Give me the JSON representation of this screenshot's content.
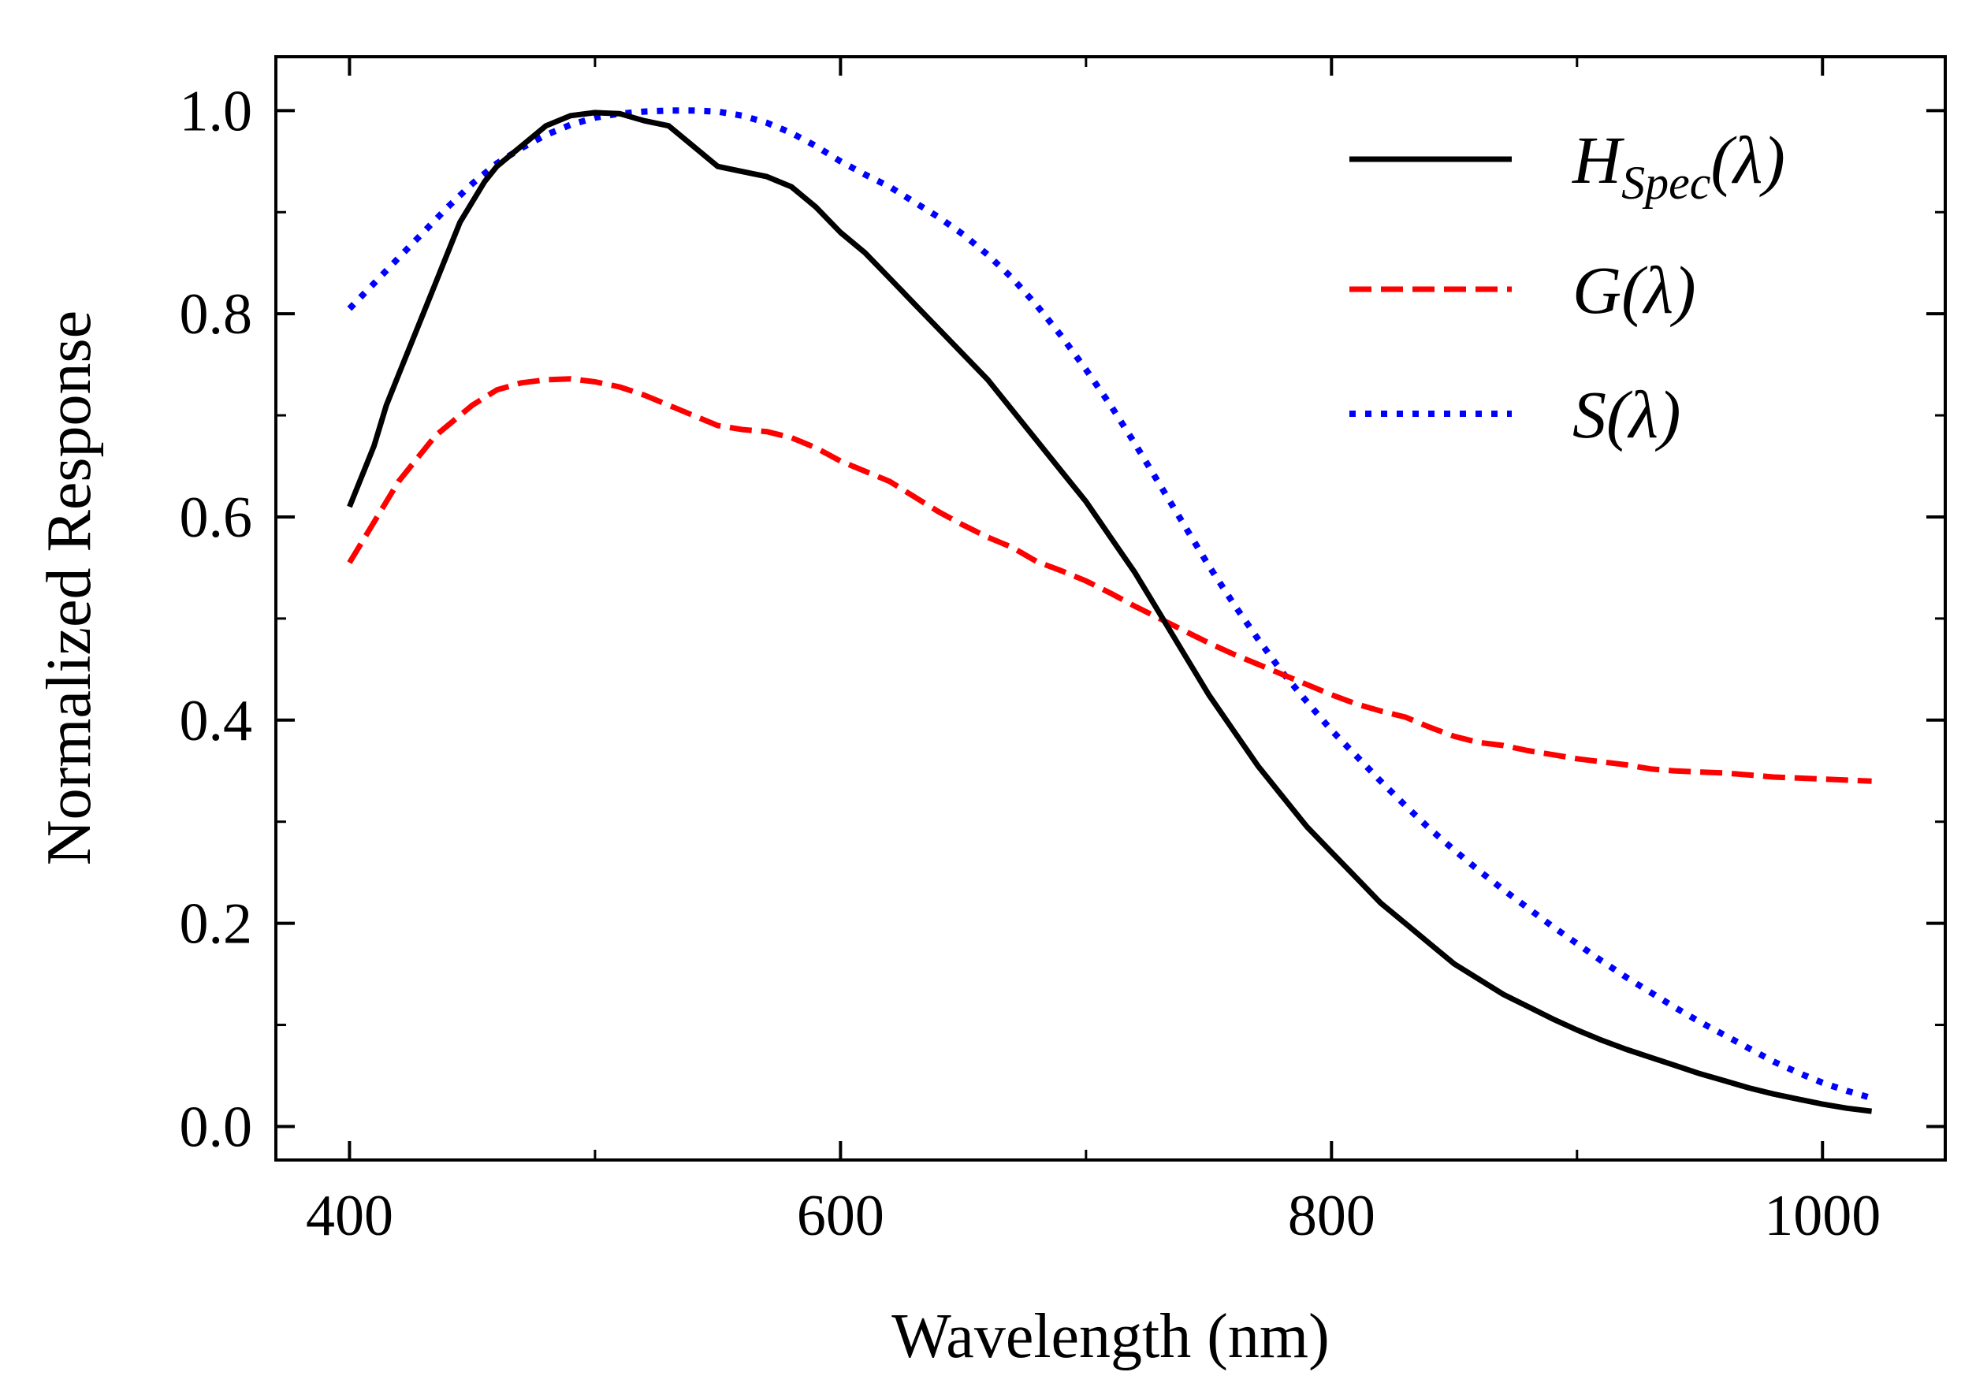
{
  "chart_data": {
    "type": "line",
    "title": "",
    "xlabel": "Wavelength (nm)",
    "ylabel": "Normalized Response",
    "xlim": [
      370,
      1050
    ],
    "ylim": [
      -0.033,
      1.053
    ],
    "x_ticks": [
      400,
      600,
      800,
      1000
    ],
    "x_tick_labels": [
      "400",
      "600",
      "800",
      "1000"
    ],
    "y_ticks": [
      0.0,
      0.2,
      0.4,
      0.6,
      0.8,
      1.0
    ],
    "y_tick_labels": [
      "0.0",
      "0.2",
      "0.4",
      "0.6",
      "0.8",
      "1.0"
    ],
    "grid": false,
    "legend": {
      "position": "top-right",
      "entries": [
        {
          "label": "H",
          "subscript": "Spec",
          "suffix": "(λ)",
          "series": "H_Spec"
        },
        {
          "label": "G",
          "subscript": "",
          "suffix": "(λ)",
          "series": "G"
        },
        {
          "label": "S",
          "subscript": "",
          "suffix": "(λ)",
          "series": "S"
        }
      ]
    },
    "series": [
      {
        "name": "H_Spec",
        "color": "#000000",
        "style": "solid",
        "points": [
          [
            400,
            0.61
          ],
          [
            405,
            0.64
          ],
          [
            410,
            0.67
          ],
          [
            415,
            0.71
          ],
          [
            420,
            0.74
          ],
          [
            425,
            0.77
          ],
          [
            430,
            0.8
          ],
          [
            435,
            0.83
          ],
          [
            440,
            0.86
          ],
          [
            445,
            0.89
          ],
          [
            450,
            0.91
          ],
          [
            455,
            0.93
          ],
          [
            460,
            0.945
          ],
          [
            470,
            0.965
          ],
          [
            480,
            0.985
          ],
          [
            490,
            0.995
          ],
          [
            500,
            0.998
          ],
          [
            510,
            0.997
          ],
          [
            520,
            0.99
          ],
          [
            530,
            0.985
          ],
          [
            540,
            0.965
          ],
          [
            550,
            0.945
          ],
          [
            560,
            0.94
          ],
          [
            570,
            0.935
          ],
          [
            580,
            0.925
          ],
          [
            590,
            0.905
          ],
          [
            600,
            0.88
          ],
          [
            610,
            0.86
          ],
          [
            620,
            0.835
          ],
          [
            630,
            0.81
          ],
          [
            640,
            0.785
          ],
          [
            650,
            0.76
          ],
          [
            660,
            0.735
          ],
          [
            670,
            0.705
          ],
          [
            680,
            0.675
          ],
          [
            690,
            0.645
          ],
          [
            700,
            0.615
          ],
          [
            710,
            0.58
          ],
          [
            720,
            0.545
          ],
          [
            730,
            0.505
          ],
          [
            740,
            0.465
          ],
          [
            750,
            0.425
          ],
          [
            760,
            0.39
          ],
          [
            770,
            0.355
          ],
          [
            780,
            0.325
          ],
          [
            790,
            0.295
          ],
          [
            800,
            0.27
          ],
          [
            810,
            0.245
          ],
          [
            820,
            0.22
          ],
          [
            830,
            0.2
          ],
          [
            840,
            0.18
          ],
          [
            850,
            0.16
          ],
          [
            860,
            0.145
          ],
          [
            870,
            0.13
          ],
          [
            880,
            0.118
          ],
          [
            890,
            0.106
          ],
          [
            900,
            0.095
          ],
          [
            910,
            0.085
          ],
          [
            920,
            0.076
          ],
          [
            930,
            0.068
          ],
          [
            940,
            0.06
          ],
          [
            950,
            0.052
          ],
          [
            960,
            0.045
          ],
          [
            970,
            0.038
          ],
          [
            980,
            0.032
          ],
          [
            990,
            0.027
          ],
          [
            1000,
            0.022
          ],
          [
            1010,
            0.018
          ],
          [
            1020,
            0.015
          ]
        ]
      },
      {
        "name": "G",
        "color": "#ff0000",
        "style": "dashed",
        "points": [
          [
            400,
            0.555
          ],
          [
            405,
            0.575
          ],
          [
            410,
            0.595
          ],
          [
            415,
            0.615
          ],
          [
            420,
            0.635
          ],
          [
            425,
            0.65
          ],
          [
            430,
            0.665
          ],
          [
            435,
            0.68
          ],
          [
            440,
            0.69
          ],
          [
            450,
            0.71
          ],
          [
            460,
            0.725
          ],
          [
            470,
            0.732
          ],
          [
            480,
            0.735
          ],
          [
            490,
            0.736
          ],
          [
            500,
            0.733
          ],
          [
            510,
            0.728
          ],
          [
            520,
            0.72
          ],
          [
            530,
            0.71
          ],
          [
            540,
            0.7
          ],
          [
            550,
            0.69
          ],
          [
            560,
            0.686
          ],
          [
            570,
            0.684
          ],
          [
            580,
            0.678
          ],
          [
            590,
            0.668
          ],
          [
            600,
            0.655
          ],
          [
            610,
            0.645
          ],
          [
            620,
            0.635
          ],
          [
            630,
            0.62
          ],
          [
            640,
            0.605
          ],
          [
            650,
            0.592
          ],
          [
            660,
            0.58
          ],
          [
            670,
            0.57
          ],
          [
            680,
            0.556
          ],
          [
            690,
            0.547
          ],
          [
            700,
            0.537
          ],
          [
            710,
            0.525
          ],
          [
            720,
            0.512
          ],
          [
            730,
            0.5
          ],
          [
            740,
            0.488
          ],
          [
            750,
            0.476
          ],
          [
            760,
            0.465
          ],
          [
            770,
            0.455
          ],
          [
            780,
            0.445
          ],
          [
            790,
            0.435
          ],
          [
            800,
            0.425
          ],
          [
            810,
            0.416
          ],
          [
            820,
            0.409
          ],
          [
            830,
            0.403
          ],
          [
            840,
            0.393
          ],
          [
            850,
            0.384
          ],
          [
            860,
            0.378
          ],
          [
            870,
            0.375
          ],
          [
            880,
            0.37
          ],
          [
            890,
            0.366
          ],
          [
            900,
            0.362
          ],
          [
            910,
            0.359
          ],
          [
            920,
            0.356
          ],
          [
            930,
            0.352
          ],
          [
            940,
            0.35
          ],
          [
            950,
            0.349
          ],
          [
            960,
            0.348
          ],
          [
            970,
            0.346
          ],
          [
            980,
            0.344
          ],
          [
            990,
            0.343
          ],
          [
            1000,
            0.342
          ],
          [
            1010,
            0.341
          ],
          [
            1020,
            0.34
          ]
        ]
      },
      {
        "name": "S",
        "color": "#0000ff",
        "style": "dotted",
        "points": [
          [
            400,
            0.805
          ],
          [
            410,
            0.83
          ],
          [
            420,
            0.855
          ],
          [
            430,
            0.88
          ],
          [
            440,
            0.905
          ],
          [
            450,
            0.928
          ],
          [
            460,
            0.948
          ],
          [
            470,
            0.963
          ],
          [
            480,
            0.976
          ],
          [
            490,
            0.986
          ],
          [
            500,
            0.993
          ],
          [
            510,
            0.997
          ],
          [
            520,
            0.999
          ],
          [
            530,
            1.0
          ],
          [
            540,
            1.0
          ],
          [
            550,
            0.999
          ],
          [
            560,
            0.995
          ],
          [
            570,
            0.988
          ],
          [
            580,
            0.978
          ],
          [
            590,
            0.965
          ],
          [
            600,
            0.95
          ],
          [
            610,
            0.937
          ],
          [
            620,
            0.925
          ],
          [
            630,
            0.91
          ],
          [
            640,
            0.895
          ],
          [
            650,
            0.878
          ],
          [
            660,
            0.858
          ],
          [
            670,
            0.835
          ],
          [
            680,
            0.808
          ],
          [
            690,
            0.778
          ],
          [
            700,
            0.745
          ],
          [
            710,
            0.71
          ],
          [
            720,
            0.672
          ],
          [
            730,
            0.632
          ],
          [
            740,
            0.592
          ],
          [
            750,
            0.552
          ],
          [
            760,
            0.515
          ],
          [
            770,
            0.48
          ],
          [
            780,
            0.447
          ],
          [
            790,
            0.418
          ],
          [
            800,
            0.39
          ],
          [
            810,
            0.365
          ],
          [
            820,
            0.34
          ],
          [
            830,
            0.316
          ],
          [
            840,
            0.293
          ],
          [
            850,
            0.272
          ],
          [
            860,
            0.252
          ],
          [
            870,
            0.233
          ],
          [
            880,
            0.215
          ],
          [
            890,
            0.197
          ],
          [
            900,
            0.18
          ],
          [
            910,
            0.163
          ],
          [
            920,
            0.147
          ],
          [
            930,
            0.132
          ],
          [
            940,
            0.117
          ],
          [
            950,
            0.103
          ],
          [
            960,
            0.09
          ],
          [
            970,
            0.077
          ],
          [
            980,
            0.064
          ],
          [
            990,
            0.053
          ],
          [
            1000,
            0.043
          ],
          [
            1010,
            0.035
          ],
          [
            1020,
            0.028
          ]
        ]
      }
    ]
  }
}
